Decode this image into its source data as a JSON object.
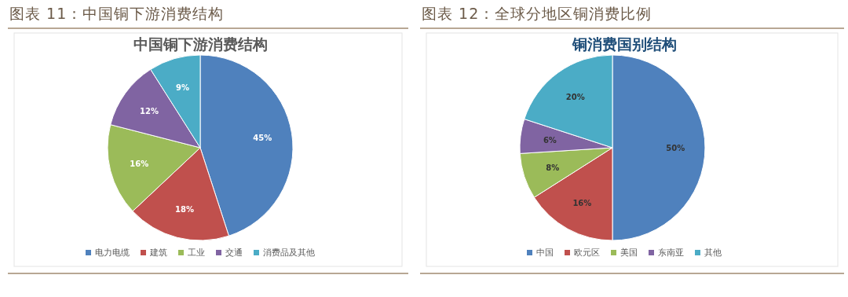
{
  "chart_data": [
    {
      "type": "pie",
      "title": "图表 11：中国铜下游消费结构",
      "subtitle": "中国铜下游消费结构",
      "categories": [
        "电力电缆",
        "建筑",
        "工业",
        "交通",
        "消费品及其他"
      ],
      "values": [
        45,
        18,
        16,
        12,
        9
      ],
      "colors": [
        "#4f81bd",
        "#c0504d",
        "#9bbb59",
        "#8064a2",
        "#4bacc6"
      ],
      "value_labels": [
        "45%",
        "18%",
        "16%",
        "12%",
        "9%"
      ],
      "legend": "bottom"
    },
    {
      "type": "pie",
      "title": "图表 12：全球分地区铜消费比例",
      "subtitle": "铜消费国别结构",
      "categories": [
        "中国",
        "欧元区",
        "美国",
        "东南亚",
        "其他"
      ],
      "values": [
        50,
        16,
        8,
        6,
        20
      ],
      "colors": [
        "#4f81bd",
        "#c0504d",
        "#9bbb59",
        "#8064a2",
        "#4bacc6"
      ],
      "value_labels": [
        "50%",
        "16%",
        "8%",
        "6%",
        "20%"
      ],
      "legend": "bottom"
    }
  ]
}
